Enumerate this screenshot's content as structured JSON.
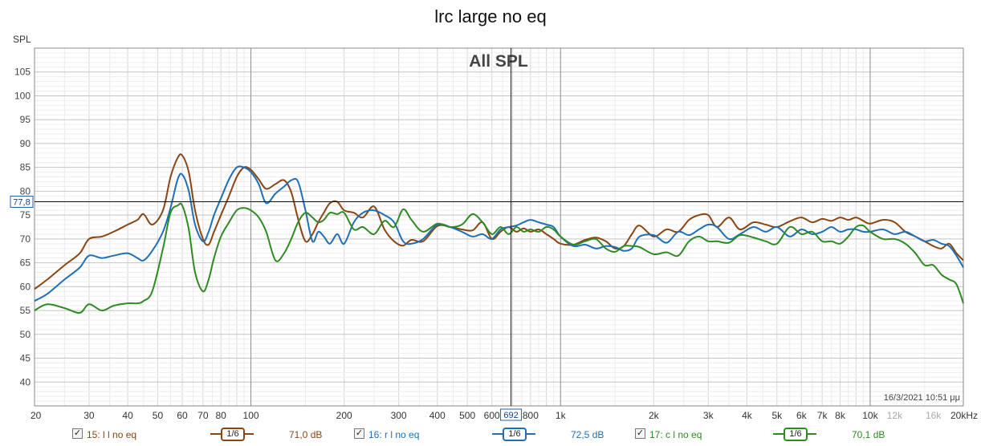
{
  "window": {
    "title": "lrc large no eq",
    "timestamp": "16/3/2021 10:51 μμ"
  },
  "cursor": {
    "x_readout": "692",
    "y_readout": "77,8"
  },
  "legend": [
    {
      "label": "15: l l no eq",
      "smoothing": "1/6",
      "value": "71,0 dB",
      "color": "#8B4513",
      "checked": "✓"
    },
    {
      "label": "16: r l no eq",
      "smoothing": "1/6",
      "value": "72,5 dB",
      "color": "#1f6fb5",
      "checked": "✓"
    },
    {
      "label": "17: c l no eq",
      "smoothing": "1/6",
      "value": "70,1 dB",
      "color": "#2e8b22",
      "checked": "✓"
    }
  ],
  "chart_data": {
    "type": "line",
    "title": "All SPL",
    "xlabel": "",
    "ylabel": "SPL",
    "x_scale": "log",
    "xlim": [
      20,
      20000
    ],
    "ylim": [
      35,
      110
    ],
    "grid": true,
    "x_ticks": [
      20,
      30,
      40,
      50,
      60,
      70,
      80,
      100,
      200,
      300,
      400,
      500,
      600,
      800,
      1000,
      2000,
      3000,
      4000,
      5000,
      6000,
      7000,
      8000,
      10000,
      12000,
      16000,
      20000
    ],
    "x_tick_labels": [
      "20",
      "30",
      "40",
      "50",
      "60",
      "70",
      "80",
      "100",
      "200",
      "300",
      "400",
      "500",
      "600",
      "800",
      "1k",
      "2k",
      "3k",
      "4k",
      "5k",
      "6k",
      "7k",
      "8k",
      "10k",
      "12k",
      "16k",
      "20kHz"
    ],
    "x_tick_muted": [
      "12k",
      "16k"
    ],
    "y_ticks": [
      40,
      45,
      50,
      55,
      60,
      65,
      70,
      75,
      80,
      85,
      90,
      95,
      100,
      105
    ],
    "cursor": {
      "x": 692,
      "y": 77.8
    },
    "series": [
      {
        "name": "15: l l no eq",
        "color": "#8B4513",
        "x": [
          20,
          22,
          25,
          28,
          30,
          33,
          36,
          40,
          43,
          45,
          48,
          52,
          55,
          58,
          60,
          63,
          66,
          70,
          73,
          76,
          80,
          85,
          90,
          95,
          100,
          106,
          112,
          120,
          128,
          135,
          142,
          150,
          158,
          165,
          172,
          180,
          190,
          200,
          215,
          230,
          250,
          270,
          290,
          310,
          330,
          360,
          400,
          440,
          480,
          520,
          560,
          600,
          640,
          680,
          720,
          760,
          800,
          850,
          900,
          950,
          1000,
          1100,
          1200,
          1300,
          1400,
          1500,
          1600,
          1700,
          1800,
          2000,
          2200,
          2400,
          2600,
          2800,
          3000,
          3200,
          3500,
          3800,
          4200,
          4600,
          5000,
          5500,
          6000,
          6500,
          7000,
          7500,
          8000,
          8500,
          9000,
          9500,
          10000,
          11000,
          12000,
          13000,
          14000,
          15000,
          16000,
          17000,
          18000,
          19000,
          20000
        ],
        "y": [
          59.5,
          61.5,
          64.5,
          67,
          70,
          70.5,
          71.5,
          73,
          74,
          75.2,
          73,
          76,
          83,
          87,
          87.5,
          84,
          76,
          70,
          68.8,
          71.5,
          75,
          79,
          83,
          85,
          84.5,
          82.5,
          80.5,
          81.5,
          82.3,
          79.8,
          74.2,
          69.5,
          71,
          73.5,
          75.5,
          77.5,
          77.8,
          76,
          75.5,
          74.5,
          76.8,
          72,
          69.5,
          68.6,
          69.8,
          69.5,
          72.7,
          72.5,
          72,
          71.8,
          73.5,
          70,
          71.5,
          72.5,
          71.5,
          72.2,
          71.5,
          72,
          71,
          70,
          69,
          68.8,
          69.8,
          70.3,
          69.5,
          68,
          68.5,
          71,
          72.8,
          70.5,
          72,
          71.5,
          74,
          75,
          75,
          72.5,
          74.5,
          72,
          73.5,
          73,
          72.5,
          73.7,
          74.5,
          73.5,
          74.2,
          73.8,
          74.5,
          74,
          74.5,
          73.8,
          73.2,
          74,
          73.5,
          71.5,
          70.5,
          69.5,
          68.5,
          68,
          69,
          67,
          65.5
        ]
      },
      {
        "name": "16: r l no eq",
        "color": "#1f6fb5",
        "x": [
          20,
          22,
          25,
          28,
          30,
          33,
          36,
          40,
          43,
          45,
          48,
          52,
          55,
          58,
          60,
          63,
          66,
          70,
          73,
          76,
          80,
          85,
          90,
          95,
          100,
          106,
          112,
          120,
          128,
          135,
          142,
          150,
          158,
          165,
          172,
          180,
          190,
          200,
          215,
          230,
          250,
          270,
          290,
          310,
          330,
          360,
          400,
          440,
          480,
          520,
          560,
          600,
          640,
          680,
          720,
          760,
          800,
          850,
          900,
          950,
          1000,
          1100,
          1200,
          1300,
          1400,
          1500,
          1600,
          1700,
          1800,
          2000,
          2200,
          2400,
          2600,
          2800,
          3000,
          3200,
          3500,
          3800,
          4200,
          4600,
          5000,
          5500,
          6000,
          6500,
          7000,
          7500,
          8000,
          8500,
          9000,
          9500,
          10000,
          11000,
          12000,
          13000,
          14000,
          15000,
          16000,
          17000,
          18000,
          19000,
          20000
        ],
        "y": [
          57,
          58.5,
          61.5,
          64,
          66.5,
          66,
          66.5,
          67,
          66,
          65.5,
          67.5,
          71.5,
          76.5,
          82.5,
          83.5,
          80,
          73,
          69.5,
          71.5,
          75,
          78.5,
          82.5,
          85,
          85,
          84,
          81.5,
          77.5,
          79.5,
          81,
          82.3,
          82,
          76,
          69.5,
          71.5,
          70.5,
          69,
          71,
          69,
          73.5,
          75.5,
          76,
          75,
          73.5,
          69.5,
          69,
          70,
          73,
          72.5,
          71.5,
          70.5,
          71,
          70,
          72,
          72.5,
          72.8,
          73.5,
          74,
          73.5,
          73,
          72.5,
          70.5,
          68.5,
          68.8,
          68,
          68.5,
          68.3,
          67.5,
          68,
          70.5,
          70.8,
          69.2,
          71.5,
          70.8,
          72,
          73,
          72.5,
          70,
          71,
          72.5,
          71.5,
          72.5,
          70.5,
          72,
          71,
          71.5,
          72.5,
          71.5,
          72,
          72,
          71.5,
          71.5,
          72,
          71,
          71.5,
          70.5,
          69.5,
          69.8,
          69,
          68.5,
          66.5,
          64
        ]
      },
      {
        "name": "17: c l no eq",
        "color": "#2e8b22",
        "x": [
          20,
          22,
          25,
          28,
          30,
          33,
          36,
          40,
          43,
          45,
          48,
          52,
          55,
          58,
          60,
          63,
          66,
          70,
          73,
          76,
          80,
          85,
          90,
          95,
          100,
          106,
          112,
          120,
          128,
          135,
          142,
          150,
          158,
          165,
          172,
          180,
          190,
          200,
          215,
          230,
          250,
          270,
          290,
          310,
          330,
          360,
          400,
          440,
          480,
          520,
          560,
          600,
          640,
          680,
          720,
          760,
          800,
          850,
          900,
          950,
          1000,
          1100,
          1200,
          1300,
          1400,
          1500,
          1600,
          1700,
          1800,
          2000,
          2200,
          2400,
          2600,
          2800,
          3000,
          3200,
          3500,
          3800,
          4200,
          4600,
          5000,
          5500,
          6000,
          6500,
          7000,
          7500,
          8000,
          8500,
          9000,
          9500,
          10000,
          11000,
          12000,
          13000,
          14000,
          15000,
          16000,
          17000,
          18000,
          19000,
          20000
        ],
        "y": [
          55,
          56.3,
          55.5,
          54.5,
          56.3,
          55,
          56,
          56.5,
          56.5,
          57,
          59,
          68,
          75.5,
          77,
          77,
          72,
          63,
          59,
          61.5,
          66,
          70.5,
          73.5,
          76,
          76.5,
          76,
          74.5,
          71.5,
          65.5,
          67,
          70,
          73.5,
          75.5,
          74.5,
          73.5,
          74,
          75.5,
          75.2,
          75.5,
          72,
          72.5,
          71,
          73.8,
          72.5,
          76.2,
          74,
          71.5,
          73.2,
          72.5,
          73,
          75.2,
          73.5,
          71,
          72.5,
          71,
          72.5,
          71.5,
          72,
          71.5,
          72.5,
          72,
          70.5,
          68.8,
          69.5,
          70,
          68,
          67.3,
          68.5,
          68.5,
          68.3,
          66.8,
          67.2,
          66.5,
          69.5,
          70.5,
          69.5,
          69.5,
          69.2,
          70.8,
          70.3,
          69.5,
          69,
          72.5,
          71,
          71.5,
          69.5,
          69.5,
          69,
          70.5,
          72.5,
          72.8,
          71.5,
          70,
          70,
          69,
          67,
          64.5,
          64.5,
          62.5,
          61.5,
          60.5,
          56.5
        ]
      }
    ]
  }
}
